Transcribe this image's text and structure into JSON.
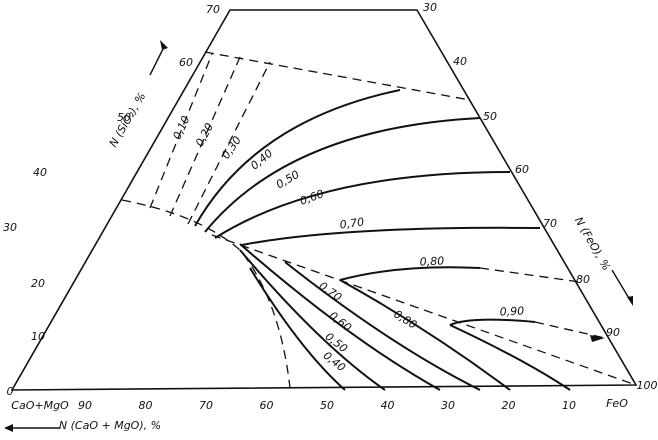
{
  "diagram": {
    "vertex_left": "CaO+MgO",
    "vertex_right": "FeO",
    "left_axis_title": "N (SiO₂), %",
    "right_axis_title": "N (FeO), %",
    "bottom_axis_title": "N (CaO + MgO), %",
    "left_ticks": [
      "0",
      "10",
      "20",
      "30",
      "40",
      "50",
      "60",
      "70"
    ],
    "right_ticks": [
      "30",
      "40",
      "50",
      "60",
      "70",
      "80",
      "90",
      "100"
    ],
    "bottom_ticks": [
      "90",
      "80",
      "70",
      "60",
      "50",
      "40",
      "30",
      "20",
      "10"
    ],
    "upper_contours": [
      "0,10",
      "0,20",
      "0,30",
      "0,40",
      "0,50",
      "0,60",
      "0,70",
      "0,80",
      "0,90"
    ],
    "lower_contours": [
      "0,70",
      "0,60",
      "0,50",
      "0,40",
      "0,80"
    ]
  }
}
